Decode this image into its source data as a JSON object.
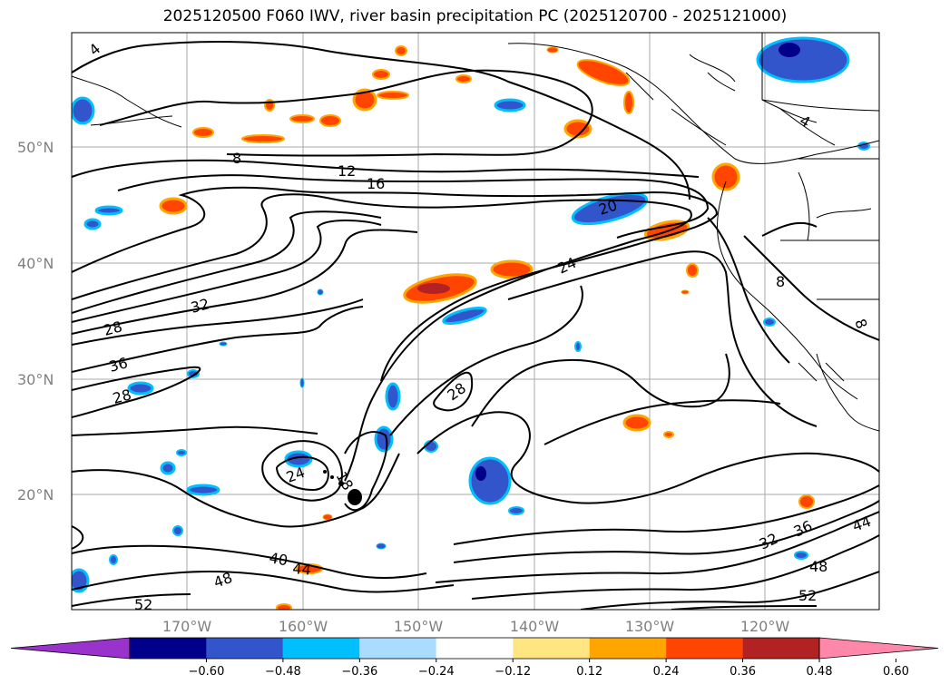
{
  "title": "2025120500 F060 IWV, river basin precipitation PC (2025120700 - 2025121000)",
  "lat_labels": [
    "50°N",
    "40°N",
    "30°N",
    "20°N"
  ],
  "lon_labels": [
    "170°W",
    "160°W",
    "150°W",
    "140°W",
    "130°W",
    "120°W"
  ],
  "colorbar": {
    "ticks": [
      "−0.60",
      "−0.48",
      "−0.36",
      "−0.24",
      "−0.12",
      "0.12",
      "0.24",
      "0.36",
      "0.48",
      "0.60"
    ],
    "colors": [
      "#9933cc",
      "#00008b",
      "#3355cc",
      "#00bfff",
      "#aadcff",
      "#ffffff",
      "#ffe680",
      "#ffa500",
      "#ff4500",
      "#b22222",
      "#ff88aa"
    ]
  },
  "contour_labels": [
    "8",
    "12",
    "16",
    "20",
    "24",
    "28",
    "32",
    "36",
    "28",
    "28",
    "24",
    "18",
    "40",
    "44",
    "48",
    "52",
    "32",
    "36",
    "44",
    "48",
    "52",
    "8",
    "8",
    "4",
    "4"
  ]
}
